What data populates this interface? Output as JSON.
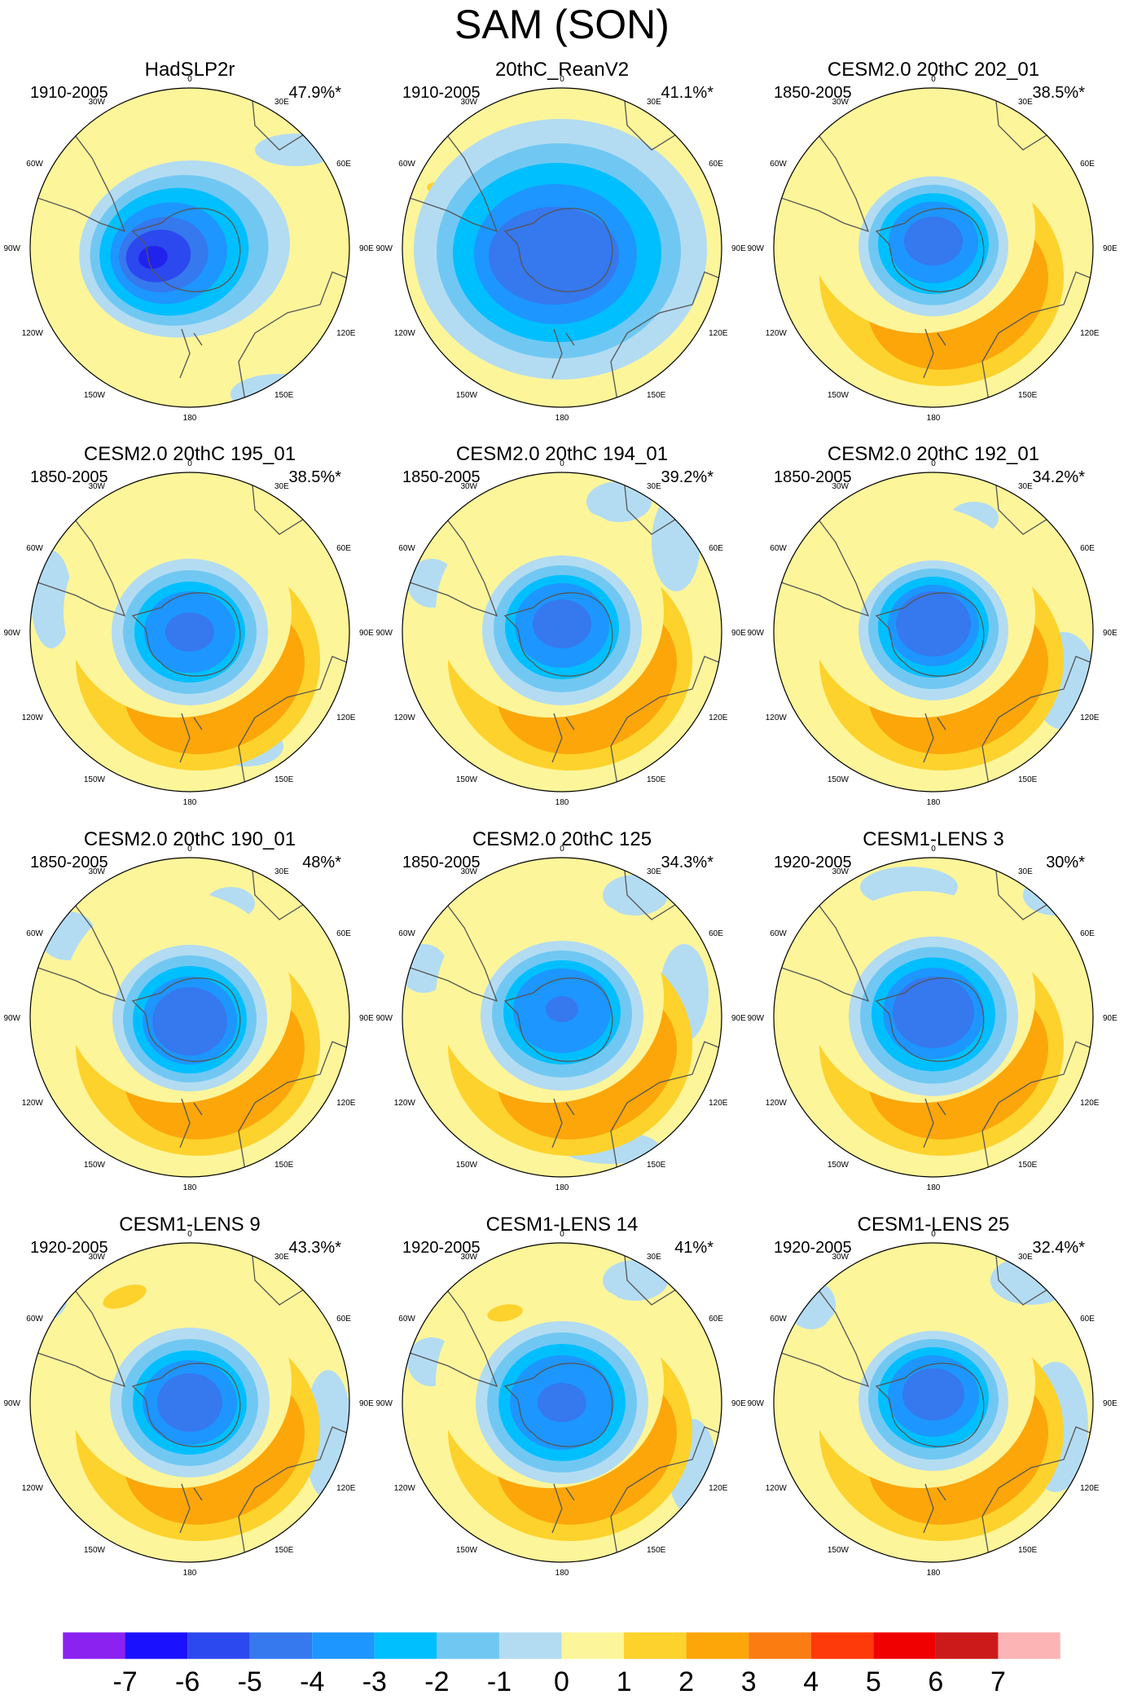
{
  "title": "SAM (SON)",
  "longitude_labels": [
    "0",
    "30E",
    "60E",
    "90E",
    "120E",
    "150E",
    "180",
    "150W",
    "120W",
    "90W",
    "60W",
    "30W"
  ],
  "panels": [
    {
      "title": "HadSLP2r",
      "period": "1910-2005",
      "variance": "47.9%*"
    },
    {
      "title": "20thC_ReanV2",
      "period": "1910-2005",
      "variance": "41.1%*"
    },
    {
      "title": "CESM2.0 20thC 202_01",
      "period": "1850-2005",
      "variance": "38.5%*"
    },
    {
      "title": "CESM2.0 20thC 195_01",
      "period": "1850-2005",
      "variance": "38.5%*"
    },
    {
      "title": "CESM2.0 20thC 194_01",
      "period": "1850-2005",
      "variance": "39.2%*"
    },
    {
      "title": "CESM2.0 20thC 192_01",
      "period": "1850-2005",
      "variance": "34.2%*"
    },
    {
      "title": "CESM2.0 20thC 190_01",
      "period": "1850-2005",
      "variance": "48%*"
    },
    {
      "title": "CESM2.0 20thC 125",
      "period": "1850-2005",
      "variance": "34.3%*"
    },
    {
      "title": "CESM1-LENS 3",
      "period": "1920-2005",
      "variance": "30%*"
    },
    {
      "title": "CESM1-LENS 9",
      "period": "1920-2005",
      "variance": "43.3%*"
    },
    {
      "title": "CESM1-LENS 14",
      "period": "1920-2005",
      "variance": "41%*"
    },
    {
      "title": "CESM1-LENS 25",
      "period": "1920-2005",
      "variance": "32.4%*"
    }
  ],
  "colorbar": {
    "colors": [
      "#8c22f0",
      "#1a12ff",
      "#2c48ef",
      "#3678ee",
      "#1d96ff",
      "#00bfff",
      "#70c8f2",
      "#b3dcf2",
      "#fdf59a",
      "#fdd22c",
      "#fca60a",
      "#fb7d12",
      "#ff3a0a",
      "#f00000",
      "#cc1a1a",
      "#fcb4b4"
    ],
    "labels": [
      "-7",
      "-6",
      "-5",
      "-4",
      "-3",
      "-2",
      "-1",
      "0",
      "1",
      "2",
      "3",
      "4",
      "5",
      "6",
      "7"
    ]
  }
}
